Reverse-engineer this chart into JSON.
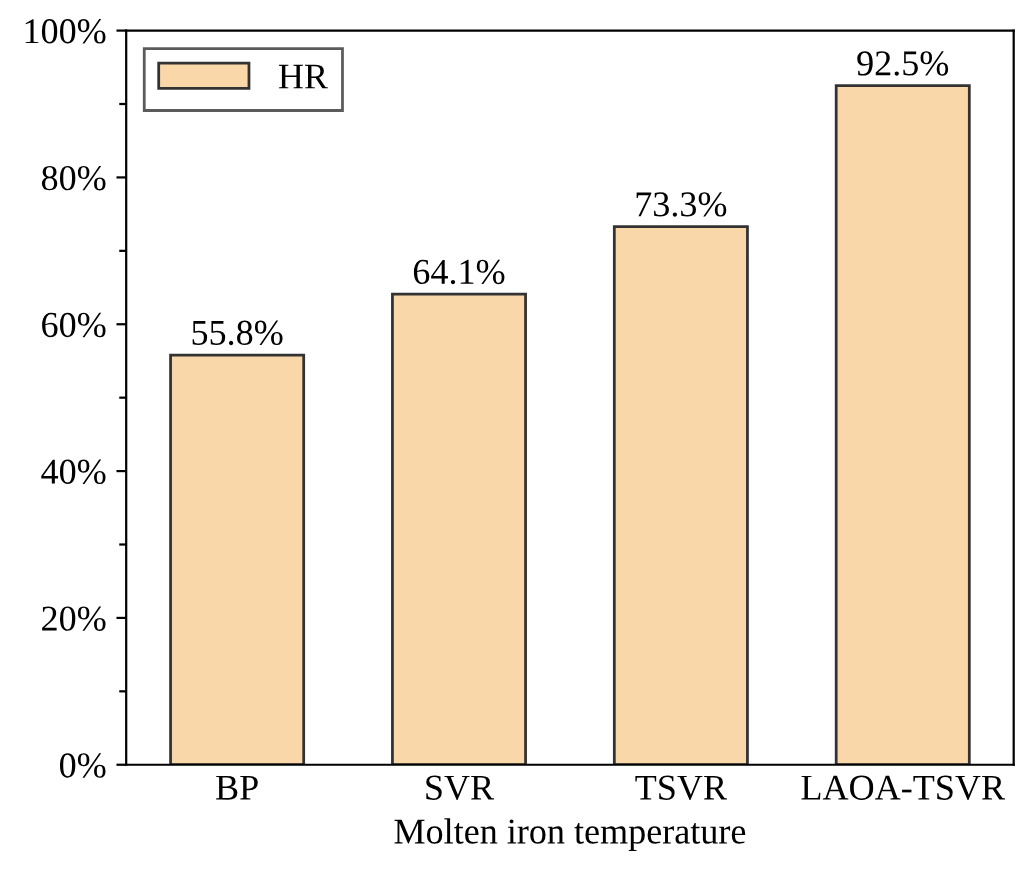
{
  "chart_data": {
    "type": "bar",
    "xlabel": "Molten iron temperature",
    "categories": [
      "BP",
      "SVR",
      "TSVR",
      "LAOA-TSVR"
    ],
    "series": [
      {
        "name": "HR",
        "color": "#fad7a8",
        "values": [
          55.8,
          64.1,
          73.3,
          92.5
        ],
        "value_labels": [
          "55.8%",
          "64.1%",
          "73.3%",
          "92.5%"
        ]
      }
    ],
    "ylim": [
      0,
      100
    ],
    "yticks": [
      {
        "value": 0,
        "label": "0%"
      },
      {
        "value": 10,
        "label": null
      },
      {
        "value": 20,
        "label": "20%"
      },
      {
        "value": 30,
        "label": null
      },
      {
        "value": 40,
        "label": "40%"
      },
      {
        "value": 50,
        "label": null
      },
      {
        "value": 60,
        "label": "60%"
      },
      {
        "value": 70,
        "label": null
      },
      {
        "value": 80,
        "label": "80%"
      },
      {
        "value": 90,
        "label": null
      },
      {
        "value": 100,
        "label": "100%"
      }
    ],
    "legend": "top left",
    "grid": false
  }
}
